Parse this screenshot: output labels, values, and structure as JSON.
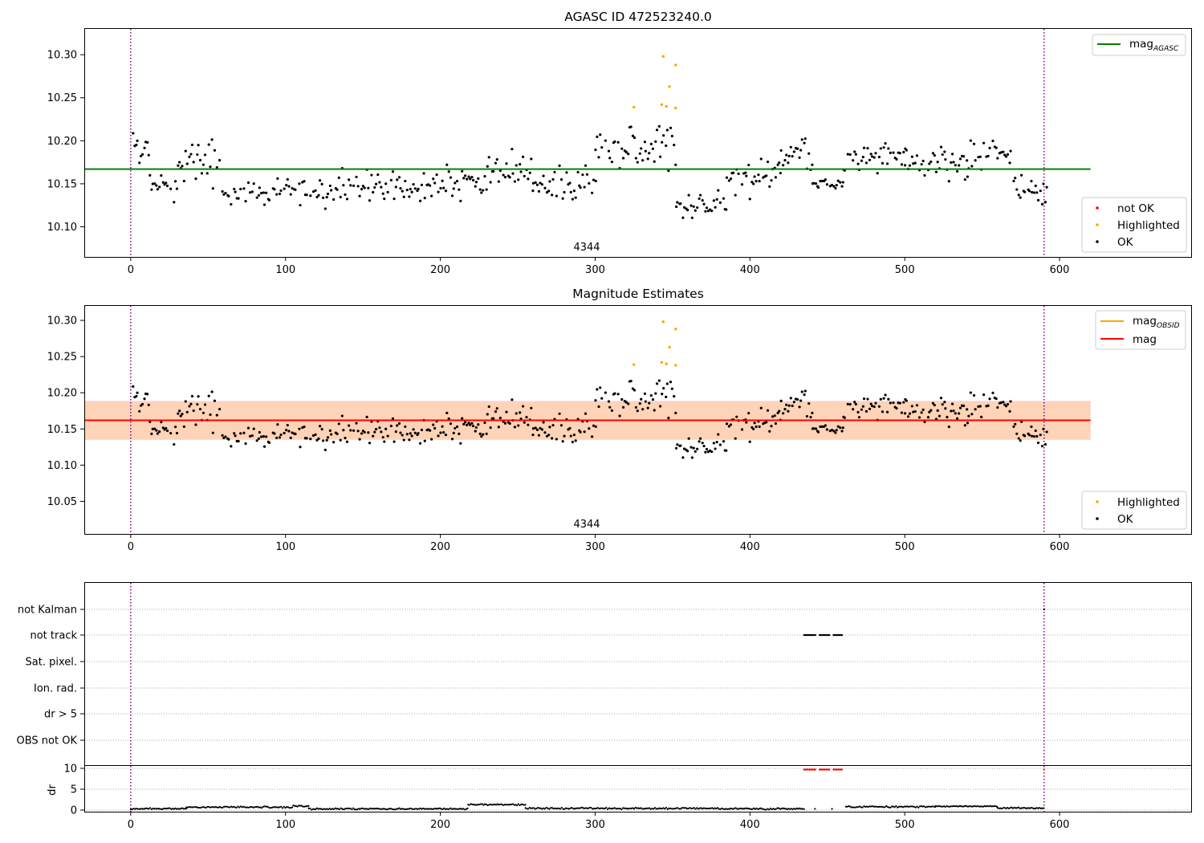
{
  "chart_data": [
    {
      "type": "scatter",
      "title": "AGASC ID 472523240.0",
      "annotation": "4344",
      "xlim": [
        -30,
        685
      ],
      "ylim": [
        10.065,
        10.33
      ],
      "xticks": [
        "0",
        "100",
        "200",
        "300",
        "400",
        "500",
        "600"
      ],
      "yticks": [
        "10.10",
        "10.15",
        "10.20",
        "10.25",
        "10.30"
      ],
      "vlines": [
        0,
        590
      ],
      "hline": {
        "name": "mag",
        "sub": "AGASC",
        "value": 10.167,
        "x_end": 620,
        "color": "#008000"
      },
      "legend_lines": [
        {
          "name": "mag",
          "sub": "AGASC",
          "color": "#008000"
        }
      ],
      "legend_points": [
        {
          "name": "not OK",
          "color": "#ff0000"
        },
        {
          "name": "Highlighted",
          "color": "#ffa500"
        },
        {
          "name": "OK",
          "color": "#000000"
        }
      ],
      "highlighted": [
        [
          325,
          10.239
        ],
        [
          344,
          10.298
        ],
        [
          346,
          10.24
        ],
        [
          348,
          10.263
        ],
        [
          352,
          10.288
        ],
        [
          343,
          10.242
        ],
        [
          352,
          10.238
        ]
      ],
      "ok_segments": [
        [
          0,
          12,
          10.185,
          0.018
        ],
        [
          12,
          30,
          10.145,
          0.016
        ],
        [
          30,
          58,
          10.175,
          0.02
        ],
        [
          58,
          130,
          10.14,
          0.015
        ],
        [
          130,
          200,
          10.145,
          0.017
        ],
        [
          200,
          230,
          10.15,
          0.018
        ],
        [
          230,
          260,
          10.165,
          0.02
        ],
        [
          260,
          300,
          10.148,
          0.018
        ],
        [
          300,
          320,
          10.188,
          0.018
        ],
        [
          320,
          352,
          10.195,
          0.022
        ],
        [
          352,
          385,
          10.125,
          0.015
        ],
        [
          385,
          420,
          10.16,
          0.02
        ],
        [
          420,
          440,
          10.185,
          0.018
        ],
        [
          440,
          460,
          10.15,
          0.005
        ],
        [
          460,
          500,
          10.182,
          0.018
        ],
        [
          500,
          540,
          10.175,
          0.016
        ],
        [
          540,
          570,
          10.18,
          0.018
        ],
        [
          570,
          582,
          10.14,
          0.018
        ],
        [
          582,
          592,
          10.14,
          0.015
        ]
      ]
    },
    {
      "type": "scatter",
      "title": "Magnitude Estimates",
      "annotation": "4344",
      "xlim": [
        -30,
        685
      ],
      "ylim": [
        10.005,
        10.32
      ],
      "xticks": [
        "0",
        "100",
        "200",
        "300",
        "400",
        "500",
        "600"
      ],
      "yticks": [
        "10.05",
        "10.10",
        "10.15",
        "10.20",
        "10.25",
        "10.30"
      ],
      "vlines": [
        0,
        590
      ],
      "bands": [
        {
          "y0": 10.135,
          "y1": 10.189,
          "color": "#ffc0cb",
          "opacity": 0.5
        },
        {
          "y0": 10.135,
          "y1": 10.188,
          "color": "#ffa500",
          "opacity": 0.2
        }
      ],
      "hline": {
        "name": "mag",
        "value": 10.162,
        "x_end": 620,
        "color": "#ff0000"
      },
      "legend_lines": [
        {
          "name": "mag",
          "sub": "OBSID",
          "color": "#ffa500"
        },
        {
          "name": "mag",
          "color": "#ff0000"
        }
      ],
      "legend_points": [
        {
          "name": "Highlighted",
          "color": "#ffa500"
        },
        {
          "name": "OK",
          "color": "#000000"
        }
      ]
    },
    {
      "type": "scatter",
      "xlim": [
        -30,
        685
      ],
      "xticks": [
        "0",
        "100",
        "200",
        "300",
        "400",
        "500",
        "600"
      ],
      "vlines": [
        0,
        590
      ],
      "flag_labels": [
        "not Kalman",
        "not track",
        "Sat. pixel.",
        "Ion. rad.",
        "dr > 5",
        "OBS not OK"
      ],
      "not_track_ranges": [
        [
          435,
          443
        ],
        [
          445,
          452
        ],
        [
          454,
          460
        ]
      ],
      "not_kalman_points": [
        590
      ],
      "dr_axis": {
        "ylabel": "dr",
        "yticks": [
          "0",
          "5",
          "10"
        ],
        "ylim": [
          -1,
          11
        ]
      },
      "dr_red_ranges": [
        [
          435,
          443
        ],
        [
          445,
          452
        ],
        [
          454,
          460
        ],
        [
          590,
          590
        ]
      ],
      "dr_levels": [
        [
          0,
          36,
          0.3
        ],
        [
          36,
          105,
          0.7
        ],
        [
          105,
          115,
          1.0
        ],
        [
          115,
          218,
          0.3
        ],
        [
          218,
          255,
          1.3
        ],
        [
          255,
          380,
          0.4
        ],
        [
          380,
          435,
          0.3
        ],
        [
          462,
          520,
          0.8
        ],
        [
          520,
          560,
          0.9
        ],
        [
          560,
          590,
          0.5
        ]
      ]
    }
  ]
}
